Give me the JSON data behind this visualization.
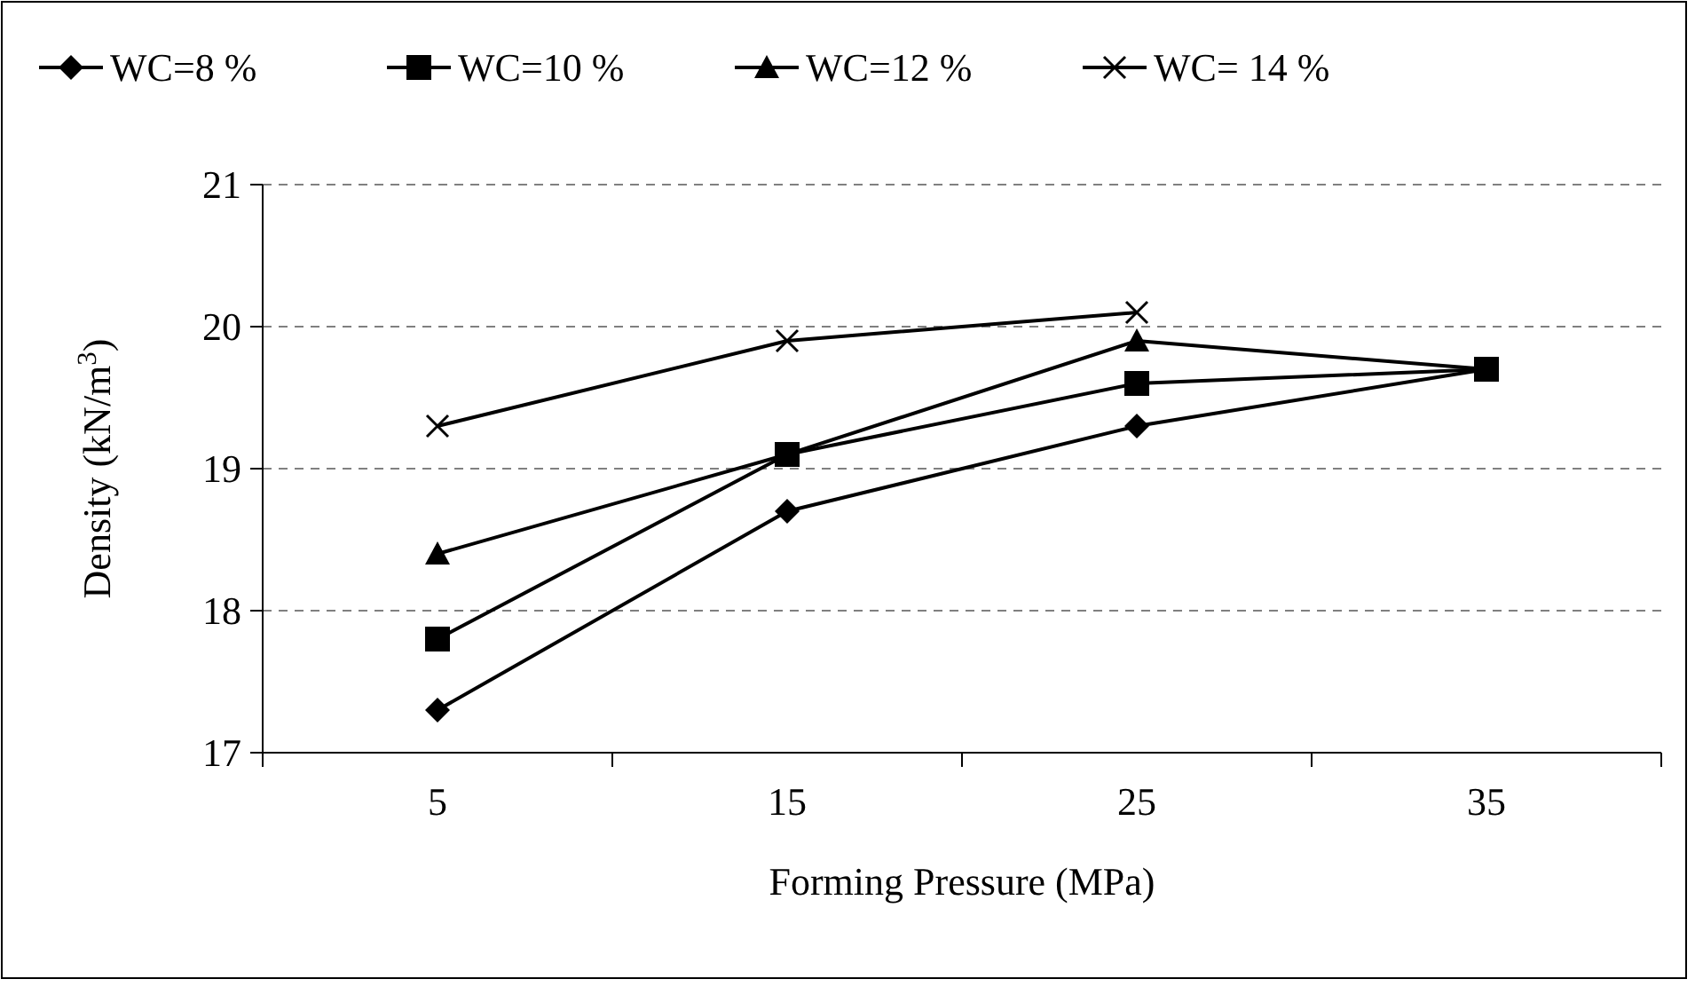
{
  "chart_data": {
    "type": "line",
    "xlabel": "Forming Pressure (MPa)",
    "ylabel": "Density (kN/m$^{3}$)",
    "categories": [
      "5",
      "15",
      "25",
      "35"
    ],
    "series": [
      {
        "name": "WC=8 %",
        "color": "#000000",
        "marker": "diamond",
        "values": [
          17.3,
          18.7,
          19.3,
          19.7
        ]
      },
      {
        "name": "WC=10 %",
        "color": "#000000",
        "marker": "square",
        "values": [
          17.8,
          19.1,
          19.6,
          19.7
        ]
      },
      {
        "name": "WC=12 %",
        "color": "#000000",
        "marker": "triangle",
        "values": [
          18.4,
          19.1,
          19.9,
          19.7
        ]
      },
      {
        "name": "WC= 14 %",
        "color": "#000000",
        "marker": "cross",
        "values": [
          19.3,
          19.9,
          20.1,
          null
        ]
      }
    ],
    "ylim": [
      17,
      21
    ],
    "yticks": [
      17,
      18,
      19,
      20,
      21
    ],
    "grid": "y",
    "legend": "top",
    "line_style": "solid"
  }
}
